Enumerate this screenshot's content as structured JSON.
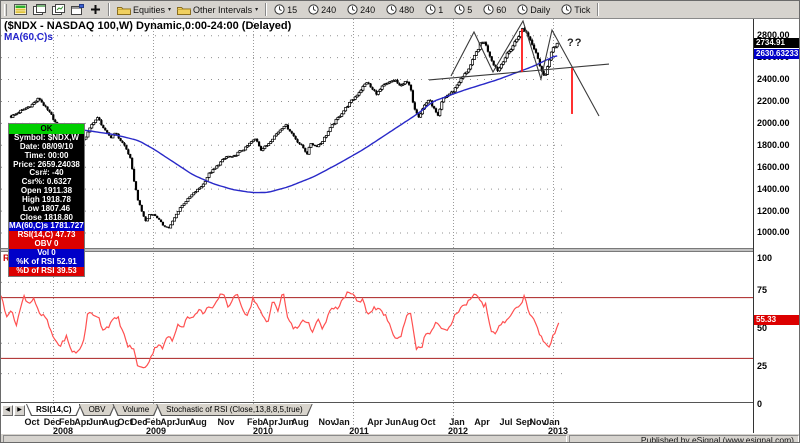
{
  "toolbar": {
    "folder_buttons": [
      {
        "label": "Equities"
      },
      {
        "label": "Other Intervals"
      }
    ],
    "interval_buttons": [
      "15",
      "240",
      "240",
      "480",
      "1",
      "5",
      "60",
      "Daily",
      "Tick"
    ]
  },
  "chart": {
    "title": "($NDX - NASDAQ 100,W) Dynamic,0:00-24:00 (Delayed)",
    "overlay_label": "MA(60,C)s",
    "pane_label": "RSI(14,C)",
    "annotation": "??",
    "axis_markers": {
      "last_price": "2734.91",
      "ma_value": "2630.63233",
      "rsi_value": "55.33"
    },
    "tooltip": {
      "header": "OK",
      "rows": [
        {
          "text": "Symbol: $NDX,W",
          "bg": "black"
        },
        {
          "text": "Date: 08/09/10",
          "bg": "black"
        },
        {
          "text": "Time: 00:00",
          "bg": "black"
        },
        {
          "text": "Price: 2659.24038",
          "bg": "black"
        },
        {
          "text": "Csr#: -40",
          "bg": "black"
        },
        {
          "text": "Csr%: 0.6327",
          "bg": "black"
        },
        {
          "text": "Open 1911.38",
          "bg": "black"
        },
        {
          "text": "High 1918.78",
          "bg": "black"
        },
        {
          "text": "Low 1807.46",
          "bg": "black"
        },
        {
          "text": "Close 1818.80",
          "bg": "black"
        },
        {
          "text": "MA(60,C)s 1781.72733",
          "bg": "blue"
        },
        {
          "text": "RSI(14,C) 47.73",
          "bg": "red"
        },
        {
          "text": "OBV 0",
          "bg": "red"
        },
        {
          "text": "Vol 0",
          "bg": "blue"
        },
        {
          "text": "%K of RSI 52.91",
          "bg": "blue"
        },
        {
          "text": "%D of RSI 39.53",
          "bg": "red"
        }
      ]
    },
    "tabs": {
      "items": [
        "RSI(14,C)",
        "OBV",
        "Volume",
        "Stochastic of RSI (Close,13,8,8,5,true)"
      ],
      "active": 0
    }
  },
  "status": {
    "right_text": "Published by eSignal (www.esignal.com)"
  },
  "chart_data": {
    "type": "candlestick",
    "title": "($NDX - NASDAQ 100,W) Dynamic,0:00-24:00 (Delayed)",
    "symbol": "$NDX NASDAQ 100, weekly bars, Oct 2007 - Jan 2013",
    "legend": [
      "price candles (black)",
      "MA(60,C) overlay (blue)",
      "RSI(14,C) lower pane (red)"
    ],
    "last_price": 2734.91,
    "ma_last": 2630.63233,
    "rsi_last": 55.33,
    "y_axis": {
      "ticks": [
        2800,
        2600,
        2400,
        2200,
        2000,
        1800,
        1600,
        1400,
        1200,
        1000
      ],
      "decimals": 2,
      "min": 1000,
      "max": 2940
    },
    "rsi_axis": {
      "ticks": [
        100,
        75,
        50,
        25,
        0
      ],
      "overbought": 70,
      "oversold": 30,
      "dotted_levels": [
        80,
        60,
        40,
        20
      ]
    },
    "x_axis": {
      "months": [
        [
          "Oct",
          2007.79
        ],
        [
          "Dec",
          2007.99
        ],
        [
          "Feb",
          2008.14
        ],
        [
          "Apr",
          2008.29
        ],
        [
          "Jun",
          2008.43
        ],
        [
          "Aug",
          2008.58
        ],
        [
          "Oct",
          2008.72
        ],
        [
          "Dec",
          2008.86
        ],
        [
          "Feb",
          2009.0
        ],
        [
          "Apr",
          2009.15
        ],
        [
          "Jun",
          2009.3
        ],
        [
          "Aug",
          2009.45
        ],
        [
          "Nov",
          2009.73
        ],
        [
          "Feb",
          2010.02
        ],
        [
          "Apr",
          2010.17
        ],
        [
          "Jun",
          2010.33
        ],
        [
          "Aug",
          2010.47
        ],
        [
          "Nov",
          2010.74
        ],
        [
          "Jan",
          2010.89
        ],
        [
          "Apr",
          2011.22
        ],
        [
          "Jun",
          2011.4
        ],
        [
          "Aug",
          2011.57
        ],
        [
          "Oct",
          2011.75
        ],
        [
          "Jan",
          2012.04
        ],
        [
          "Apr",
          2012.29
        ],
        [
          "Jul",
          2012.53
        ],
        [
          "Sep",
          2012.71
        ],
        [
          "Nov",
          2012.85
        ],
        [
          "Jan",
          2012.99
        ]
      ],
      "years": [
        [
          "2008",
          2008.1
        ],
        [
          "2009",
          2009.03
        ],
        [
          "2010",
          2010.1
        ],
        [
          "2011",
          2011.06
        ],
        [
          "2012",
          2012.05
        ],
        [
          "2013",
          2013.05
        ]
      ],
      "gridline_years": [
        2008,
        2009,
        2010,
        2011,
        2012,
        2013
      ]
    },
    "price_anchors": [
      [
        2007.58,
        2060
      ],
      [
        2007.67,
        2110
      ],
      [
        2007.79,
        2170
      ],
      [
        2007.86,
        2230
      ],
      [
        2007.92,
        2150
      ],
      [
        2007.98,
        2080
      ],
      [
        2008.04,
        1980
      ],
      [
        2008.1,
        1870
      ],
      [
        2008.17,
        1790
      ],
      [
        2008.22,
        1860
      ],
      [
        2008.28,
        1830
      ],
      [
        2008.33,
        1880
      ],
      [
        2008.4,
        2010
      ],
      [
        2008.45,
        2050
      ],
      [
        2008.52,
        1930
      ],
      [
        2008.58,
        1870
      ],
      [
        2008.62,
        1920
      ],
      [
        2008.67,
        1850
      ],
      [
        2008.72,
        1790
      ],
      [
        2008.77,
        1690
      ],
      [
        2008.81,
        1480
      ],
      [
        2008.85,
        1300
      ],
      [
        2008.89,
        1190
      ],
      [
        2008.93,
        1100
      ],
      [
        2008.97,
        1180
      ],
      [
        2009.02,
        1160
      ],
      [
        2009.06,
        1120
      ],
      [
        2009.1,
        1070
      ],
      [
        2009.16,
        1045
      ],
      [
        2009.21,
        1130
      ],
      [
        2009.27,
        1230
      ],
      [
        2009.33,
        1290
      ],
      [
        2009.38,
        1340
      ],
      [
        2009.44,
        1390
      ],
      [
        2009.5,
        1440
      ],
      [
        2009.56,
        1540
      ],
      [
        2009.62,
        1590
      ],
      [
        2009.68,
        1650
      ],
      [
        2009.74,
        1700
      ],
      [
        2009.8,
        1690
      ],
      [
        2009.86,
        1740
      ],
      [
        2009.92,
        1770
      ],
      [
        2009.98,
        1830
      ],
      [
        2010.03,
        1860
      ],
      [
        2010.08,
        1760
      ],
      [
        2010.14,
        1800
      ],
      [
        2010.2,
        1870
      ],
      [
        2010.27,
        1940
      ],
      [
        2010.32,
        1990
      ],
      [
        2010.38,
        1920
      ],
      [
        2010.44,
        1840
      ],
      [
        2010.5,
        1780
      ],
      [
        2010.54,
        1720
      ],
      [
        2010.58,
        1820
      ],
      [
        2010.63,
        1790
      ],
      [
        2010.68,
        1820
      ],
      [
        2010.73,
        1890
      ],
      [
        2010.79,
        1980
      ],
      [
        2010.85,
        2050
      ],
      [
        2010.91,
        2120
      ],
      [
        2010.97,
        2190
      ],
      [
        2011.03,
        2250
      ],
      [
        2011.09,
        2320
      ],
      [
        2011.14,
        2380
      ],
      [
        2011.19,
        2310
      ],
      [
        2011.24,
        2270
      ],
      [
        2011.3,
        2340
      ],
      [
        2011.36,
        2370
      ],
      [
        2011.42,
        2400
      ],
      [
        2011.47,
        2330
      ],
      [
        2011.52,
        2390
      ],
      [
        2011.57,
        2340
      ],
      [
        2011.61,
        2150
      ],
      [
        2011.66,
        2060
      ],
      [
        2011.71,
        2160
      ],
      [
        2011.76,
        2220
      ],
      [
        2011.8,
        2150
      ],
      [
        2011.85,
        2060
      ],
      [
        2011.9,
        2230
      ],
      [
        2011.95,
        2260
      ],
      [
        2012.0,
        2290
      ],
      [
        2012.06,
        2380
      ],
      [
        2012.12,
        2450
      ],
      [
        2012.17,
        2520
      ],
      [
        2012.22,
        2620
      ],
      [
        2012.27,
        2720
      ],
      [
        2012.31,
        2750
      ],
      [
        2012.35,
        2660
      ],
      [
        2012.4,
        2550
      ],
      [
        2012.45,
        2480
      ],
      [
        2012.5,
        2570
      ],
      [
        2012.55,
        2640
      ],
      [
        2012.6,
        2710
      ],
      [
        2012.65,
        2790
      ],
      [
        2012.7,
        2870
      ],
      [
        2012.74,
        2820
      ],
      [
        2012.79,
        2730
      ],
      [
        2012.84,
        2630
      ],
      [
        2012.88,
        2480
      ],
      [
        2012.92,
        2440
      ],
      [
        2012.96,
        2560
      ],
      [
        2013.0,
        2690
      ],
      [
        2013.05,
        2735
      ]
    ],
    "ma_anchors": [
      [
        2007.58,
        1995
      ],
      [
        2008.0,
        1965
      ],
      [
        2008.3,
        1940
      ],
      [
        2008.6,
        1900
      ],
      [
        2008.85,
        1845
      ],
      [
        2009.0,
        1770
      ],
      [
        2009.2,
        1650
      ],
      [
        2009.4,
        1530
      ],
      [
        2009.6,
        1450
      ],
      [
        2009.8,
        1395
      ],
      [
        2010.0,
        1368
      ],
      [
        2010.15,
        1370
      ],
      [
        2010.35,
        1420
      ],
      [
        2010.6,
        1510
      ],
      [
        2010.85,
        1630
      ],
      [
        2011.1,
        1760
      ],
      [
        2011.3,
        1880
      ],
      [
        2011.5,
        2000
      ],
      [
        2011.65,
        2090
      ],
      [
        2011.8,
        2200
      ],
      [
        2012.1,
        2300
      ],
      [
        2012.45,
        2400
      ],
      [
        2012.8,
        2520
      ],
      [
        2013.05,
        2628
      ]
    ],
    "rsi_anchors": [
      [
        2007.48,
        72
      ],
      [
        2007.53,
        58
      ],
      [
        2007.58,
        62
      ],
      [
        2007.63,
        52
      ],
      [
        2007.71,
        71
      ],
      [
        2007.76,
        66
      ],
      [
        2007.81,
        70
      ],
      [
        2007.86,
        59
      ],
      [
        2007.93,
        57
      ],
      [
        2007.98,
        47
      ],
      [
        2008.03,
        41
      ],
      [
        2008.08,
        38
      ],
      [
        2008.13,
        45
      ],
      [
        2008.18,
        35
      ],
      [
        2008.25,
        34
      ],
      [
        2008.3,
        40
      ],
      [
        2008.35,
        60
      ],
      [
        2008.45,
        58
      ],
      [
        2008.5,
        49
      ],
      [
        2008.55,
        51
      ],
      [
        2008.6,
        55
      ],
      [
        2008.65,
        57
      ],
      [
        2008.7,
        47
      ],
      [
        2008.75,
        38
      ],
      [
        2008.8,
        37
      ],
      [
        2008.85,
        25
      ],
      [
        2008.9,
        23
      ],
      [
        2008.95,
        27
      ],
      [
        2009.0,
        34
      ],
      [
        2009.05,
        40
      ],
      [
        2009.1,
        37
      ],
      [
        2009.15,
        45
      ],
      [
        2009.2,
        41
      ],
      [
        2009.25,
        53
      ],
      [
        2009.3,
        51
      ],
      [
        2009.35,
        58
      ],
      [
        2009.4,
        56
      ],
      [
        2009.45,
        62
      ],
      [
        2009.5,
        60
      ],
      [
        2009.55,
        64
      ],
      [
        2009.6,
        62
      ],
      [
        2009.65,
        69
      ],
      [
        2009.7,
        74
      ],
      [
        2009.75,
        64
      ],
      [
        2009.8,
        69
      ],
      [
        2009.85,
        72
      ],
      [
        2009.9,
        62
      ],
      [
        2009.95,
        58
      ],
      [
        2010.0,
        70
      ],
      [
        2010.05,
        64
      ],
      [
        2010.1,
        57
      ],
      [
        2010.15,
        53
      ],
      [
        2010.2,
        70
      ],
      [
        2010.25,
        61
      ],
      [
        2010.3,
        74
      ],
      [
        2010.35,
        56
      ],
      [
        2010.4,
        50
      ],
      [
        2010.45,
        50
      ],
      [
        2010.5,
        56
      ],
      [
        2010.55,
        53
      ],
      [
        2010.6,
        48
      ],
      [
        2010.65,
        55
      ],
      [
        2010.7,
        49
      ],
      [
        2010.75,
        58
      ],
      [
        2010.8,
        64
      ],
      [
        2010.85,
        62
      ],
      [
        2010.9,
        69
      ],
      [
        2010.95,
        74
      ],
      [
        2011.0,
        72
      ],
      [
        2011.05,
        66
      ],
      [
        2011.1,
        70
      ],
      [
        2011.15,
        58
      ],
      [
        2011.2,
        63
      ],
      [
        2011.28,
        61
      ],
      [
        2011.33,
        58
      ],
      [
        2011.38,
        49
      ],
      [
        2011.43,
        43
      ],
      [
        2011.48,
        44
      ],
      [
        2011.53,
        58
      ],
      [
        2011.58,
        60
      ],
      [
        2011.63,
        37
      ],
      [
        2011.68,
        36
      ],
      [
        2011.73,
        47
      ],
      [
        2011.78,
        46
      ],
      [
        2011.83,
        55
      ],
      [
        2011.88,
        49
      ],
      [
        2011.93,
        48
      ],
      [
        2011.98,
        51
      ],
      [
        2012.03,
        60
      ],
      [
        2012.08,
        63
      ],
      [
        2012.13,
        66
      ],
      [
        2012.18,
        70
      ],
      [
        2012.23,
        73
      ],
      [
        2012.28,
        68
      ],
      [
        2012.31,
        63
      ],
      [
        2012.33,
        66
      ],
      [
        2012.38,
        47
      ],
      [
        2012.43,
        46
      ],
      [
        2012.48,
        53
      ],
      [
        2012.53,
        55
      ],
      [
        2012.58,
        59
      ],
      [
        2012.63,
        63
      ],
      [
        2012.68,
        66
      ],
      [
        2012.71,
        71
      ],
      [
        2012.76,
        61
      ],
      [
        2012.81,
        55
      ],
      [
        2012.86,
        47
      ],
      [
        2012.91,
        41
      ],
      [
        2012.96,
        37
      ],
      [
        2013.01,
        46
      ],
      [
        2013.06,
        55
      ]
    ],
    "pattern": {
      "description": "head and shoulders annotation with neckline and measured-move projection",
      "neckline": [
        [
          2011.76,
          2396
        ],
        [
          2013.56,
          2541
        ]
      ],
      "outline": [
        [
          2011.98,
          2432
        ],
        [
          2012.21,
          2834
        ],
        [
          2012.4,
          2469
        ],
        [
          2012.7,
          2934
        ],
        [
          2012.88,
          2405
        ],
        [
          2012.99,
          2852
        ],
        [
          2013.46,
          2067
        ]
      ],
      "measure_lines": [
        {
          "t": 2012.69,
          "from": 2861,
          "to": 2469
        },
        {
          "t": 2013.19,
          "from": 2505,
          "to": 2086
        }
      ],
      "annotation": {
        "text": "??",
        "t": 2013.14,
        "price": 2790
      }
    },
    "colors": {
      "ma": "#2929c8",
      "rsi": "#ff5050",
      "rsi_levels": "#aa2020",
      "measure": "#ff1a1a",
      "pattern": "#3a3a3a",
      "candle": "#000000",
      "grid": "#909090",
      "marker_last_bg": "#000000",
      "marker_ma_bg": "#0000c8",
      "marker_rsi_bg": "#dc0000"
    }
  }
}
